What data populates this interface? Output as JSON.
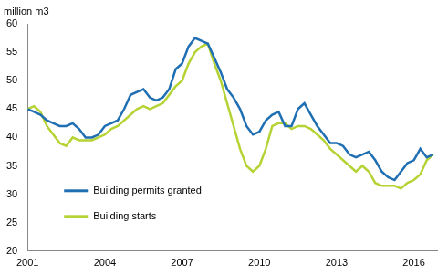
{
  "chart_data": {
    "type": "line",
    "y_label": "million m3",
    "x": [
      2001.0,
      2001.25,
      2001.5,
      2001.75,
      2002.0,
      2002.25,
      2002.5,
      2002.75,
      2003.0,
      2003.25,
      2003.5,
      2003.75,
      2004.0,
      2004.25,
      2004.5,
      2004.75,
      2005.0,
      2005.25,
      2005.5,
      2005.75,
      2006.0,
      2006.25,
      2006.5,
      2006.75,
      2007.0,
      2007.25,
      2007.5,
      2007.75,
      2008.0,
      2008.25,
      2008.5,
      2008.75,
      2009.0,
      2009.25,
      2009.5,
      2009.75,
      2010.0,
      2010.25,
      2010.5,
      2010.75,
      2011.0,
      2011.25,
      2011.5,
      2011.75,
      2012.0,
      2012.25,
      2012.5,
      2012.75,
      2013.0,
      2013.25,
      2013.5,
      2013.75,
      2014.0,
      2014.25,
      2014.5,
      2014.75,
      2015.0,
      2015.25,
      2015.5,
      2015.75,
      2016.0,
      2016.25,
      2016.5,
      2016.75
    ],
    "series": [
      {
        "name": "Building permits granted",
        "color": "#1f6fb2",
        "values": [
          45,
          44.5,
          44,
          43,
          42.5,
          42,
          42,
          42.5,
          41.5,
          40,
          40,
          40.5,
          42,
          42.5,
          43,
          45,
          47.5,
          48,
          48.5,
          47,
          46.5,
          47,
          48.5,
          52,
          53,
          56,
          57.5,
          57,
          56.5,
          54,
          51.5,
          48.5,
          47,
          45,
          42,
          40.5,
          41,
          43,
          44,
          44.5,
          42,
          42,
          45,
          46,
          44,
          42,
          40.5,
          39,
          39,
          38.5,
          37,
          36.5,
          37,
          37.5,
          36,
          34,
          33,
          32.5,
          34,
          35.5,
          36,
          38,
          36.5,
          37
        ]
      },
      {
        "name": "Building starts",
        "color": "#b5d334",
        "values": [
          45,
          45.5,
          44.5,
          42,
          40.5,
          39,
          38.5,
          40,
          39.5,
          39.5,
          39.5,
          40,
          40.5,
          41.5,
          42,
          43,
          44,
          45,
          45.5,
          45,
          45.5,
          46,
          47.5,
          49,
          50,
          53,
          55,
          56,
          56.5,
          53,
          50,
          46,
          42,
          38,
          35,
          34,
          35,
          38,
          42,
          42.5,
          42.5,
          41.5,
          42,
          42,
          41.5,
          40.5,
          39.5,
          38,
          37,
          36,
          35,
          34,
          35,
          34,
          32,
          31.5,
          31.5,
          31.5,
          31,
          32,
          32.5,
          33.5,
          36,
          37
        ]
      }
    ],
    "xlim": [
      2001,
      2016.9
    ],
    "xticks": [
      2001,
      2004,
      2007,
      2010,
      2013,
      2016
    ],
    "ylim": [
      20,
      60
    ],
    "yticks": [
      20,
      25,
      30,
      35,
      40,
      45,
      50,
      55,
      60
    ],
    "grid": false,
    "legend": "lower left"
  }
}
